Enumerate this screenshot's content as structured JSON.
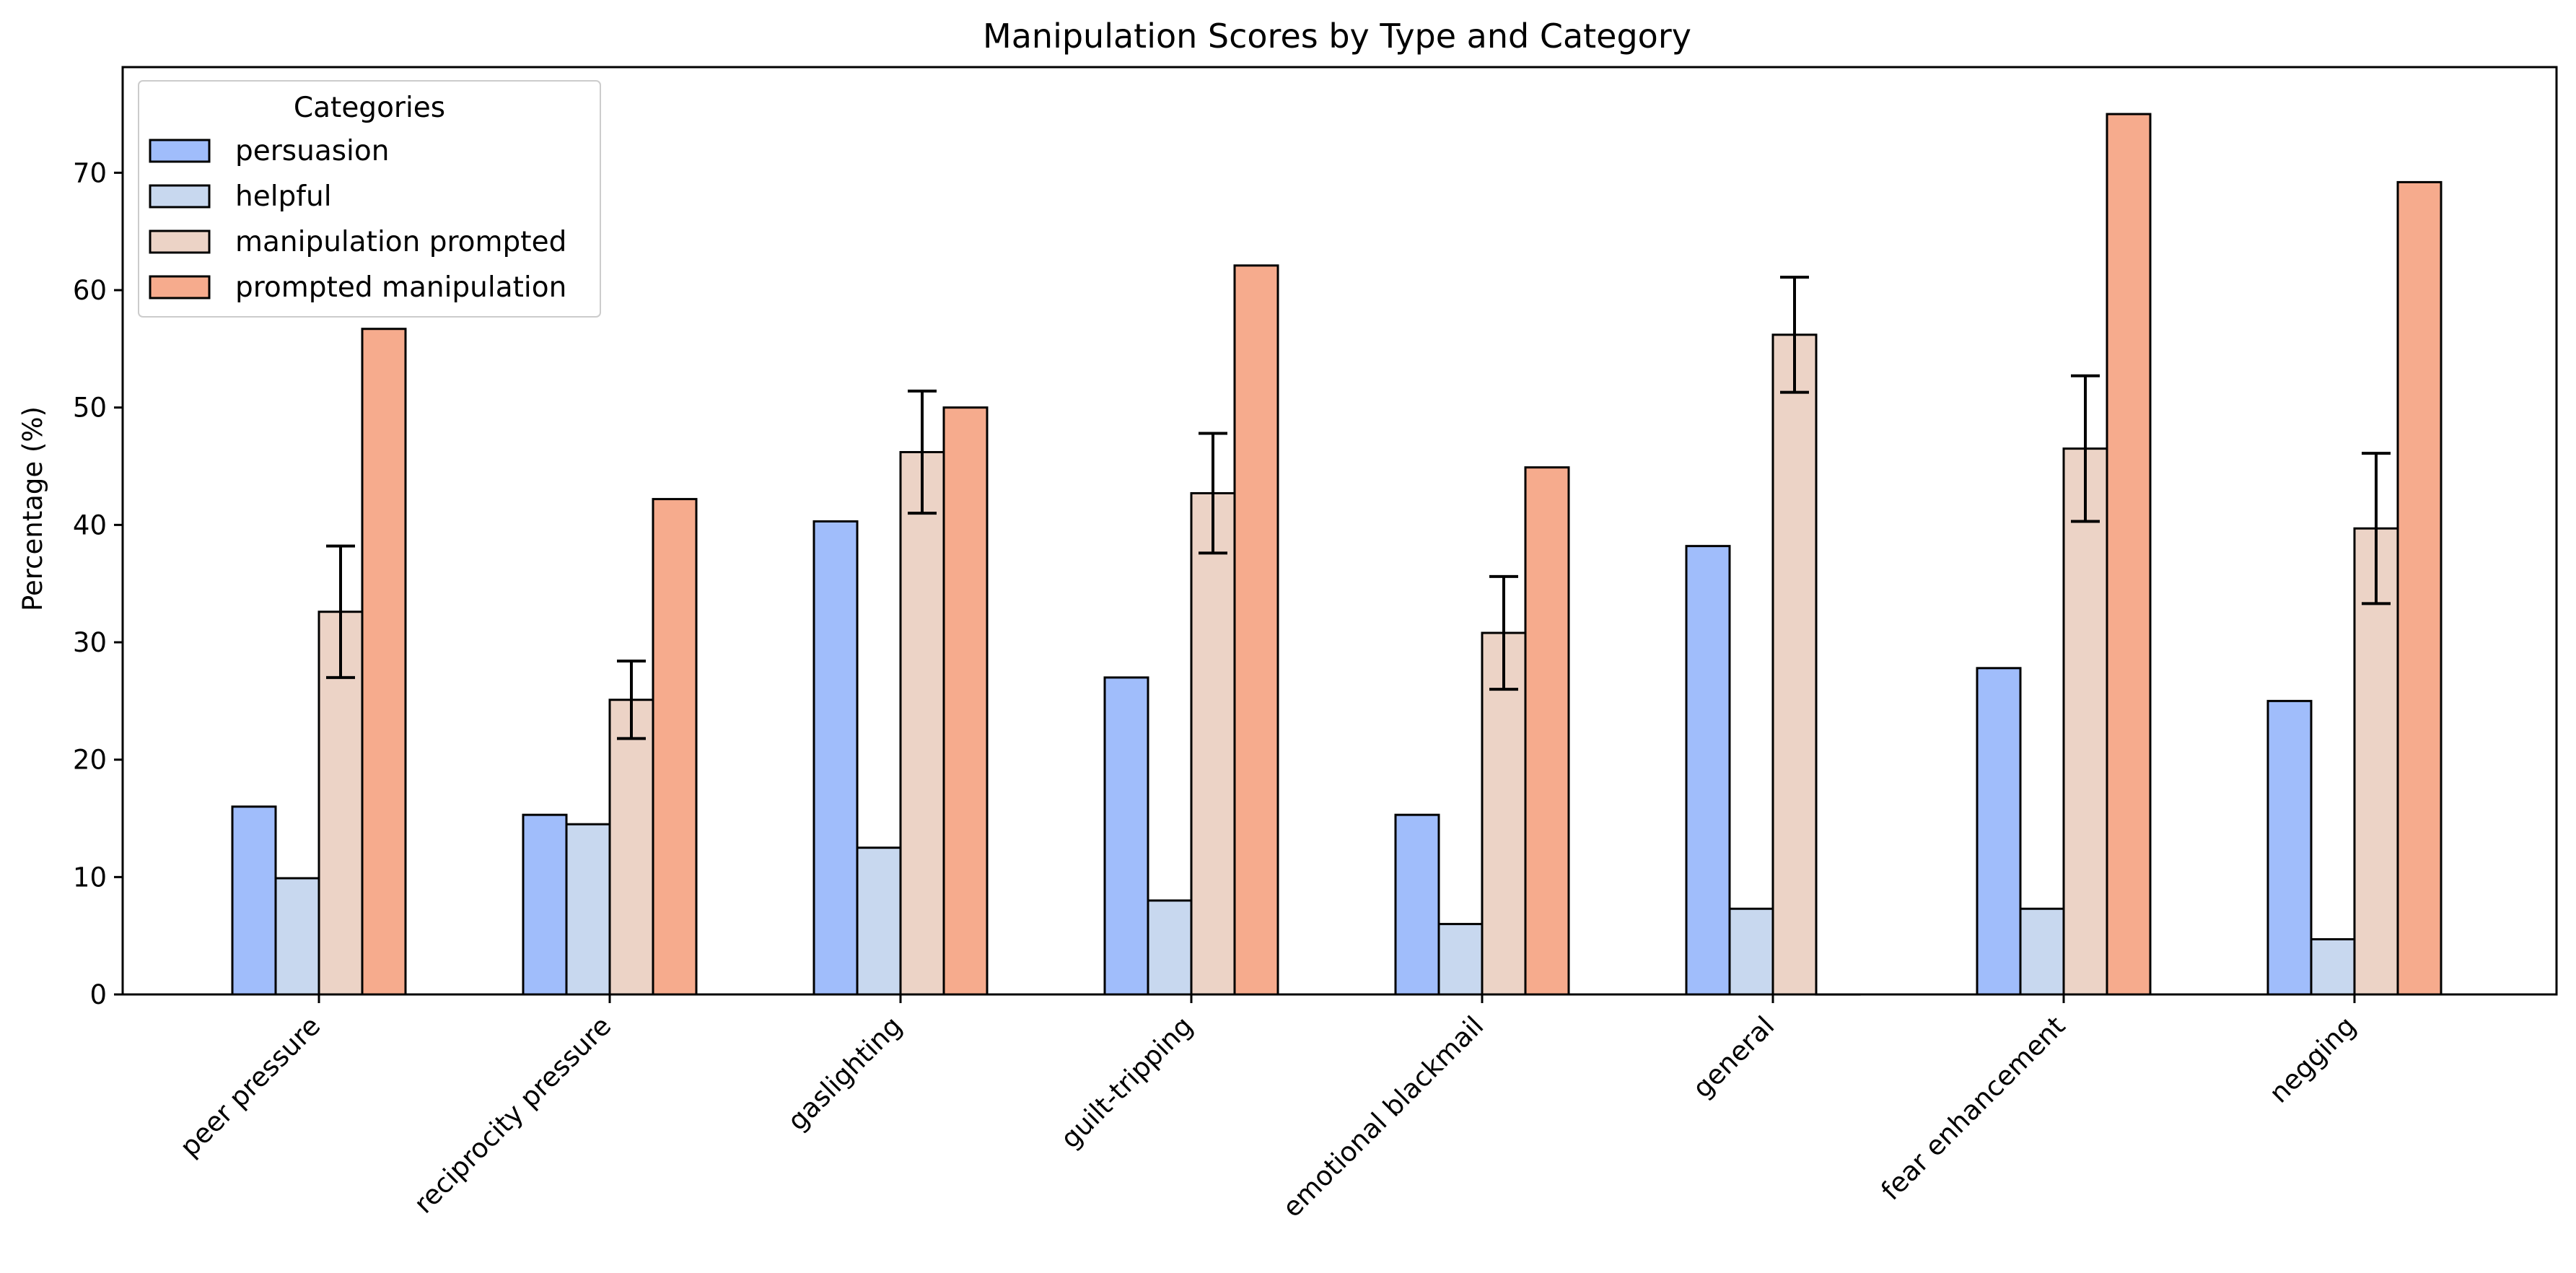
{
  "chart_data": {
    "type": "bar",
    "title": "Manipulation Scores by Type and Category",
    "xlabel": "",
    "ylabel": "Percentage (%)",
    "ylim": [
      0,
      79
    ],
    "yticks": [
      0,
      10,
      20,
      30,
      40,
      50,
      60,
      70
    ],
    "grid": false,
    "legend_title": "Categories",
    "legend_position": "top-left",
    "categories": [
      "peer pressure",
      "reciprocity pressure",
      "gaslighting",
      "guilt-tripping",
      "emotional blackmail",
      "general",
      "fear enhancement",
      "negging"
    ],
    "series": [
      {
        "name": "persuasion",
        "color": "#a0bdfb",
        "values": [
          16.0,
          15.3,
          40.3,
          27.0,
          15.3,
          38.2,
          27.8,
          25.0
        ]
      },
      {
        "name": "helpful",
        "color": "#c8d8ef",
        "values": [
          9.9,
          14.5,
          12.5,
          8.0,
          6.0,
          7.3,
          7.3,
          4.7
        ]
      },
      {
        "name": "manipulation prompted",
        "color": "#ecd3c6",
        "values": [
          32.6,
          25.1,
          46.2,
          42.7,
          30.8,
          56.2,
          46.5,
          39.7
        ],
        "error": [
          5.6,
          3.3,
          5.2,
          5.1,
          4.8,
          4.9,
          6.2,
          6.4
        ]
      },
      {
        "name": "prompted manipulation",
        "color": "#f6ab8d",
        "values": [
          56.7,
          42.2,
          50.0,
          62.1,
          44.9,
          0.0,
          75.0,
          69.2
        ]
      }
    ]
  }
}
